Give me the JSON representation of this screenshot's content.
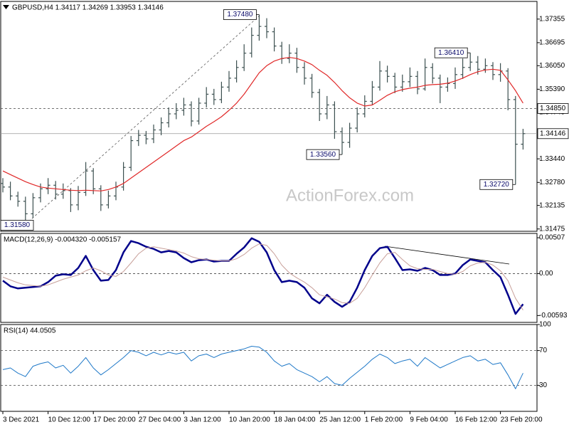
{
  "chart_data": [
    {
      "type": "ohlc",
      "title": "GBPUSD,H4  1.34117 1.34269 1.33953 1.34146",
      "watermark": "ActionForex.com",
      "categories": [
        "3 Dec 2021",
        null,
        null,
        null,
        null,
        null,
        "10 Dec 12:00",
        null,
        null,
        null,
        null,
        null,
        "17 Dec 20:00",
        null,
        null,
        null,
        null,
        null,
        "27 Dec 04:00",
        null,
        null,
        null,
        null,
        null,
        "3 Jan 12:00",
        null,
        null,
        null,
        null,
        null,
        "10 Jan 20:00",
        null,
        null,
        null,
        null,
        null,
        "18 Jan 04:00",
        null,
        null,
        null,
        null,
        null,
        "25 Jan 12:00",
        null,
        null,
        null,
        null,
        null,
        "1 Feb 20:00",
        null,
        null,
        null,
        null,
        null,
        "9 Feb 04:00",
        null,
        null,
        null,
        null,
        null,
        "16 Feb 12:00",
        null,
        null,
        null,
        null,
        null,
        "23 Feb 20:00",
        null,
        null,
        null
      ],
      "open": [
        1.3275,
        1.3265,
        1.324,
        1.3225,
        1.319,
        1.3235,
        1.326,
        1.327,
        1.3245,
        1.3255,
        1.3215,
        1.325,
        1.331,
        1.326,
        1.3215,
        1.324,
        1.3265,
        1.332,
        1.3395,
        1.341,
        1.34,
        1.3425,
        1.3445,
        1.347,
        1.348,
        1.3495,
        1.345,
        1.35,
        1.3525,
        1.351,
        1.3545,
        1.357,
        1.36,
        1.364,
        1.369,
        1.3715,
        1.37,
        1.366,
        1.3625,
        1.364,
        1.36,
        1.357,
        1.353,
        1.347,
        1.3495,
        1.342,
        1.339,
        1.343,
        1.347,
        1.3505,
        1.3545,
        1.359,
        1.3575,
        1.3545,
        1.356,
        1.3575,
        1.354,
        1.36,
        1.357,
        1.3545,
        1.3555,
        1.358,
        1.36,
        1.3615,
        1.3595,
        1.3605,
        1.358,
        1.359,
        1.351,
        1.3385
      ],
      "high": [
        1.329,
        1.328,
        1.3252,
        1.3238,
        1.3248,
        1.3275,
        1.329,
        1.3282,
        1.3275,
        1.3262,
        1.3268,
        1.3335,
        1.3318,
        1.327,
        1.3255,
        1.328,
        1.3335,
        1.3408,
        1.3425,
        1.3422,
        1.344,
        1.346,
        1.3488,
        1.35,
        1.3515,
        1.3505,
        1.3515,
        1.3545,
        1.354,
        1.356,
        1.359,
        1.362,
        1.3665,
        1.3712,
        1.3748,
        1.3738,
        1.3712,
        1.3672,
        1.3665,
        1.3655,
        1.3615,
        1.3582,
        1.354,
        1.352,
        1.3505,
        1.3432,
        1.3445,
        1.3488,
        1.3522,
        1.3562,
        1.3618,
        1.3605,
        1.3585,
        1.358,
        1.36,
        1.359,
        1.3625,
        1.3612,
        1.358,
        1.3572,
        1.36,
        1.3625,
        1.3641,
        1.3632,
        1.3625,
        1.3615,
        1.3612,
        1.3598,
        1.352,
        1.3428
      ],
      "low": [
        1.325,
        1.3228,
        1.321,
        1.3158,
        1.3178,
        1.3222,
        1.3245,
        1.323,
        1.3232,
        1.3195,
        1.32,
        1.324,
        1.3245,
        1.3198,
        1.3205,
        1.3228,
        1.3255,
        1.331,
        1.338,
        1.3385,
        1.3388,
        1.341,
        1.3432,
        1.3455,
        1.3465,
        1.3435,
        1.344,
        1.3488,
        1.3495,
        1.35,
        1.3532,
        1.3558,
        1.359,
        1.3628,
        1.3675,
        1.3682,
        1.3645,
        1.361,
        1.3612,
        1.3585,
        1.3552,
        1.3515,
        1.345,
        1.3455,
        1.34,
        1.3356,
        1.3375,
        1.3418,
        1.346,
        1.3495,
        1.3535,
        1.3558,
        1.3528,
        1.3532,
        1.3545,
        1.3525,
        1.3535,
        1.3555,
        1.35,
        1.3532,
        1.354,
        1.3568,
        1.359,
        1.358,
        1.3585,
        1.3565,
        1.356,
        1.348,
        1.3272,
        1.337
      ],
      "close": [
        1.3265,
        1.324,
        1.3225,
        1.319,
        1.3235,
        1.326,
        1.327,
        1.3245,
        1.3255,
        1.3215,
        1.325,
        1.331,
        1.326,
        1.3215,
        1.324,
        1.3265,
        1.332,
        1.3395,
        1.341,
        1.34,
        1.3425,
        1.3445,
        1.347,
        1.348,
        1.3495,
        1.345,
        1.35,
        1.3525,
        1.351,
        1.3545,
        1.357,
        1.36,
        1.364,
        1.369,
        1.3715,
        1.37,
        1.366,
        1.3625,
        1.364,
        1.36,
        1.357,
        1.353,
        1.347,
        1.3495,
        1.342,
        1.339,
        1.343,
        1.347,
        1.3505,
        1.3545,
        1.359,
        1.3575,
        1.3545,
        1.356,
        1.3575,
        1.354,
        1.36,
        1.357,
        1.3545,
        1.3555,
        1.358,
        1.36,
        1.3615,
        1.3595,
        1.3605,
        1.358,
        1.359,
        1.351,
        1.3385,
        1.34146
      ],
      "color": "#3c5050",
      "series": [
        {
          "color": "#e02828",
          "width": 1.2,
          "values": [
            1.331,
            1.33,
            1.329,
            1.328,
            1.3272,
            1.3265,
            1.3262,
            1.326,
            1.3258,
            1.3256,
            1.3255,
            1.3256,
            1.3255,
            1.3254,
            1.3258,
            1.3265,
            1.3275,
            1.329,
            1.3305,
            1.332,
            1.3335,
            1.335,
            1.3365,
            1.338,
            1.3395,
            1.3405,
            1.342,
            1.3435,
            1.3448,
            1.3462,
            1.348,
            1.35,
            1.3525,
            1.3555,
            1.3585,
            1.3605,
            1.3618,
            1.3625,
            1.3628,
            1.3625,
            1.3618,
            1.3608,
            1.3592,
            1.3578,
            1.3558,
            1.3535,
            1.3515,
            1.35,
            1.3492,
            1.3495,
            1.3508,
            1.3522,
            1.3532,
            1.3538,
            1.3542,
            1.3545,
            1.355,
            1.3552,
            1.3553,
            1.3556,
            1.3562,
            1.357,
            1.358,
            1.3588,
            1.3593,
            1.3595,
            1.3592,
            1.3565,
            1.3535,
            1.35
          ]
        }
      ],
      "ylim": [
        1.3141,
        1.3785
      ],
      "yticks": [
        1.37355,
        1.36695,
        {
          "value": 1.3605,
          "label": "1.36050"
        },
        {
          "value": 1.3539,
          "label": "1.35390"
        },
        1.34745,
        {
          "value": 1.3344,
          "label": "1.33440"
        },
        {
          "value": 1.3278,
          "label": "1.32780"
        },
        1.32135,
        1.31475
      ],
      "levels": [
        {
          "value": 1.3485,
          "label": "1.34850",
          "style": "dashed"
        },
        {
          "value": 1.34146,
          "style": "solid"
        }
      ],
      "annotations": [
        {
          "value": 1.3748,
          "label": "1.37480"
        },
        {
          "value": 1.3158,
          "label": "1.31580"
        },
        {
          "value": 1.3356,
          "label": "1.33560"
        },
        {
          "value": 1.3641,
          "label": "1.36410"
        },
        {
          "value": 1.3272,
          "label": "1.32720"
        }
      ]
    },
    {
      "type": "line",
      "title": "MACD(12,26,9) -0.004320 -0.005157",
      "series": [
        {
          "color": "#00008b",
          "width": 2.5,
          "values": [
            -0.001,
            -0.0018,
            -0.0021,
            -0.002,
            -0.0019,
            -0.0018,
            -0.0012,
            -0.0003,
            -0.0001,
            -0.0002,
            0.0008,
            0.0025,
            0.0005,
            -0.001,
            -0.0009,
            0.0005,
            0.003,
            0.0046,
            0.0043,
            0.0038,
            0.0035,
            0.003,
            0.0032,
            0.003,
            0.0022,
            0.0016,
            0.0019,
            0.002,
            0.0017,
            0.0018,
            0.0018,
            0.0028,
            0.0037,
            0.005,
            0.0045,
            0.003,
            0.0005,
            -0.0012,
            -0.001,
            -0.0012,
            -0.002,
            -0.0035,
            -0.0042,
            -0.003,
            -0.004,
            -0.0047,
            -0.004,
            -0.002,
            0.0005,
            0.0025,
            0.0036,
            0.0038,
            0.0022,
            0.0005,
            0.0006,
            0.0004,
            0.0008,
            0.0005,
            -0.0002,
            -0.0002,
            0.0,
            0.0012,
            0.002,
            0.0018,
            0.0016,
            0.0005,
            -0.0005,
            -0.003,
            -0.0057,
            -0.00432
          ]
        },
        {
          "color": "#c8a09a",
          "width": 1,
          "values": [
            -0.0005,
            -0.0009,
            -0.0013,
            -0.0016,
            -0.0017,
            -0.0018,
            -0.0016,
            -0.0012,
            -0.0008,
            -0.0005,
            -0.0002,
            0.0004,
            0.0008,
            0.0004,
            -0.0002,
            -0.0004,
            0.0003,
            0.0015,
            0.0028,
            0.0036,
            0.0038,
            0.0036,
            0.0034,
            0.0032,
            0.0029,
            0.0024,
            0.0021,
            0.002,
            0.0019,
            0.0018,
            0.0018,
            0.0021,
            0.0027,
            0.0036,
            0.0042,
            0.004,
            0.0028,
            0.0012,
            0.0001,
            -0.0006,
            -0.0012,
            -0.002,
            -0.003,
            -0.0033,
            -0.0036,
            -0.0041,
            -0.0042,
            -0.0035,
            -0.002,
            -0.0002,
            0.0015,
            0.0028,
            0.003,
            0.002,
            0.0011,
            0.0007,
            0.0006,
            0.0006,
            0.0003,
            0.0,
            -0.0001,
            0.0003,
            0.0011,
            0.0015,
            0.0016,
            0.0012,
            0.0004,
            -0.001,
            -0.0035,
            -0.005157
          ]
        }
      ],
      "ylim": [
        -0.0069,
        0.00568
      ],
      "yticks": [
        0.00507,
        {
          "value": 0,
          "label": "0.00"
        },
        -0.00593
      ],
      "levels": [
        0
      ]
    },
    {
      "type": "line",
      "title": "RSI(14) 44.0505",
      "series": [
        {
          "color": "#1e78c8",
          "width": 1,
          "values": [
            48,
            50,
            44,
            40,
            52,
            55,
            57,
            50,
            53,
            44,
            52,
            62,
            50,
            42,
            48,
            55,
            62,
            70,
            68,
            64,
            68,
            65,
            68,
            66,
            68,
            58,
            64,
            66,
            62,
            66,
            68,
            70,
            72,
            75,
            74,
            68,
            58,
            52,
            55,
            48,
            44,
            40,
            34,
            40,
            32,
            30,
            38,
            45,
            52,
            60,
            66,
            62,
            55,
            58,
            60,
            52,
            62,
            56,
            50,
            54,
            58,
            62,
            64,
            58,
            60,
            54,
            56,
            42,
            26,
            44.0505
          ]
        }
      ],
      "ylim": [
        0,
        100
      ],
      "yticks": [
        100,
        70,
        30
      ],
      "levels": [
        70,
        30
      ]
    }
  ]
}
